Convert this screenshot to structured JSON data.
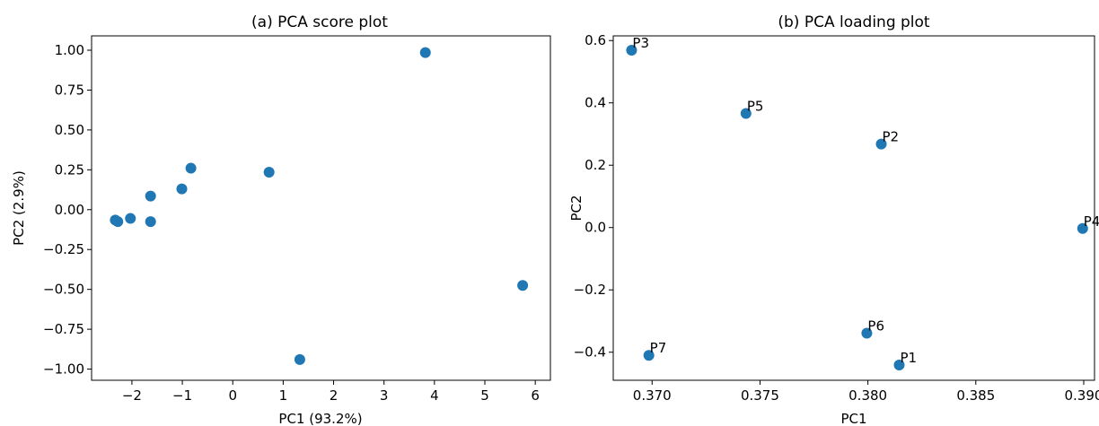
{
  "chart_data": [
    {
      "type": "scatter",
      "title": "(a) PCA score plot",
      "xlabel": "PC1 (93.2%)",
      "ylabel": "PC2 (2.9%)",
      "xlim": [
        -2.8,
        6.3
      ],
      "ylim": [
        -1.07,
        1.09
      ],
      "xticks": [
        -2,
        -1,
        0,
        1,
        2,
        3,
        4,
        5,
        6
      ],
      "xtick_labels": [
        "−2",
        "−1",
        "0",
        "1",
        "2",
        "3",
        "4",
        "5",
        "6"
      ],
      "yticks": [
        1.0,
        0.75,
        0.5,
        0.25,
        0.0,
        -0.25,
        -0.5,
        -0.75,
        -1.0
      ],
      "ytick_labels": [
        "1.00",
        "0.75",
        "0.50",
        "0.25",
        "0.00",
        "−0.25",
        "−0.50",
        "−0.75",
        "−1.00"
      ],
      "grid": false,
      "color": "#1f77b4",
      "points": [
        {
          "x": 3.82,
          "y": 0.985
        },
        {
          "x": 5.75,
          "y": -0.475
        },
        {
          "x": 1.33,
          "y": -0.94
        },
        {
          "x": 0.72,
          "y": 0.235
        },
        {
          "x": -0.83,
          "y": 0.26
        },
        {
          "x": -1.01,
          "y": 0.13
        },
        {
          "x": -1.63,
          "y": 0.085
        },
        {
          "x": -1.63,
          "y": -0.075
        },
        {
          "x": -2.03,
          "y": -0.055
        },
        {
          "x": -2.33,
          "y": -0.065
        },
        {
          "x": -2.28,
          "y": -0.075
        }
      ]
    },
    {
      "type": "scatter",
      "title": "(b) PCA loading plot",
      "xlabel": "PC1",
      "ylabel": "PC2",
      "xlim": [
        0.3682,
        0.3905
      ],
      "ylim": [
        -0.49,
        0.615
      ],
      "xticks": [
        0.37,
        0.375,
        0.38,
        0.385,
        0.39
      ],
      "xtick_labels": [
        "0.370",
        "0.375",
        "0.380",
        "0.385",
        "0.390"
      ],
      "yticks": [
        0.6,
        0.4,
        0.2,
        0.0,
        -0.2,
        -0.4
      ],
      "ytick_labels": [
        "0.6",
        "0.4",
        "0.2",
        "0.0",
        "−0.2",
        "−0.4"
      ],
      "grid": false,
      "color": "#1f77b4",
      "points": [
        {
          "label": "P1",
          "x": 0.38145,
          "y": -0.441
        },
        {
          "label": "P2",
          "x": 0.38062,
          "y": 0.268
        },
        {
          "label": "P3",
          "x": 0.36905,
          "y": 0.569
        },
        {
          "label": "P4",
          "x": 0.38995,
          "y": -0.003
        },
        {
          "label": "P5",
          "x": 0.37435,
          "y": 0.366
        },
        {
          "label": "P6",
          "x": 0.37995,
          "y": -0.339
        },
        {
          "label": "P7",
          "x": 0.36985,
          "y": -0.41
        }
      ]
    }
  ]
}
